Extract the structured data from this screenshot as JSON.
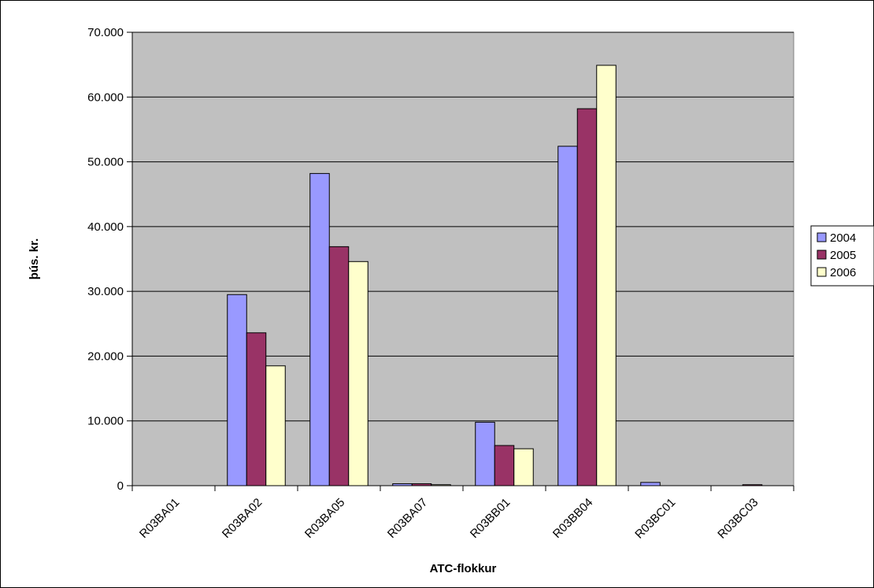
{
  "chart_data": {
    "type": "bar",
    "title": "",
    "xlabel": "ATC-flokkur",
    "ylabel": "þús. kr.",
    "ylim": [
      0,
      70000
    ],
    "yticks": [
      0,
      10000,
      20000,
      30000,
      40000,
      50000,
      60000,
      70000
    ],
    "ytick_labels": [
      "0",
      "10.000",
      "20.000",
      "30.000",
      "40.000",
      "50.000",
      "60.000",
      "70.000"
    ],
    "grid": true,
    "legend_position": "right",
    "categories": [
      "R03BA01",
      "R03BA02",
      "R03BA05",
      "R03BA07",
      "R03BB01",
      "R03BB04",
      "R03BC01",
      "R03BC03"
    ],
    "series": [
      {
        "name": "2004",
        "color": "#9999FF",
        "values": [
          0,
          29500,
          48200,
          300,
          9800,
          52400,
          500,
          0
        ]
      },
      {
        "name": "2005",
        "color": "#993366",
        "values": [
          0,
          23600,
          36900,
          300,
          6200,
          58200,
          0,
          150
        ]
      },
      {
        "name": "2006",
        "color": "#FFFFCC",
        "values": [
          0,
          18500,
          34600,
          150,
          5700,
          64900,
          0,
          0
        ]
      }
    ],
    "plot_background": "#C0C0C0"
  }
}
